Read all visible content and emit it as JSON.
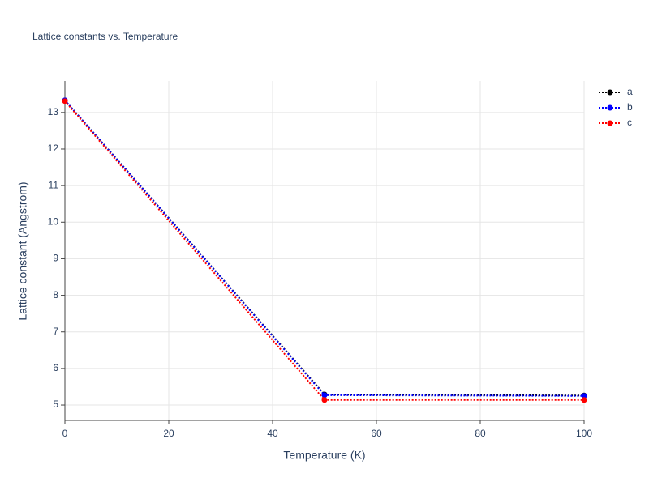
{
  "chart_data": {
    "type": "line",
    "title": "Lattice constants vs. Temperature",
    "x_label": "Temperature (K)",
    "y_label": "Lattice constant (Angstrom)",
    "x": [
      0,
      50,
      100
    ],
    "series": [
      {
        "name": "a",
        "color": "#000000",
        "values": [
          13.33,
          5.29,
          5.26
        ]
      },
      {
        "name": "b",
        "color": "#0000ff",
        "values": [
          13.33,
          5.27,
          5.25
        ]
      },
      {
        "name": "c",
        "color": "#ff0000",
        "values": [
          13.31,
          5.14,
          5.14
        ]
      }
    ],
    "xlim": [
      0,
      100
    ],
    "xticks": [
      0,
      20,
      40,
      60,
      80,
      100
    ],
    "ylim": [
      4.58,
      13.86
    ],
    "yticks": [
      5,
      6,
      7,
      8,
      9,
      10,
      11,
      12,
      13
    ],
    "grid": true,
    "legend": "top-right"
  }
}
